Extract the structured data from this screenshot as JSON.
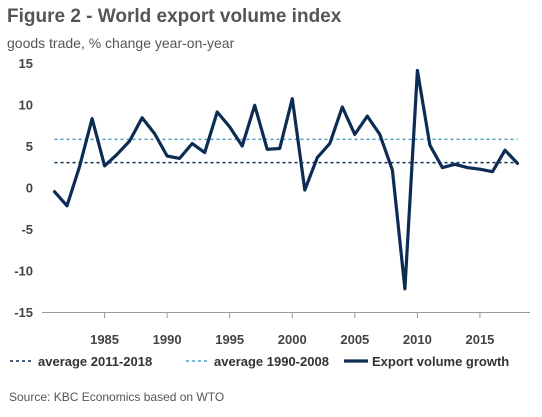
{
  "header": {
    "title": "Figure 2 - World export volume index",
    "subtitle": "goods trade, % change year-on-year"
  },
  "footer": {
    "source": "Source: KBC Economics based on WTO"
  },
  "colors": {
    "main_line": "#0d2c54",
    "avg_2011_2018": "#0d2c54",
    "avg_1990_2008": "#4fa0bd",
    "axis": "#999999"
  },
  "chart_data": {
    "type": "line",
    "title": "Figure 2 - World export volume index",
    "subtitle": "goods trade, % change year-on-year",
    "xlabel": "",
    "ylabel": "",
    "xlim": [
      1980,
      2019
    ],
    "ylim": [
      -15,
      15
    ],
    "x_ticks": [
      1985,
      1990,
      1995,
      2000,
      2005,
      2010,
      2015
    ],
    "y_ticks": [
      15,
      10,
      5,
      0,
      -5,
      -10,
      -15
    ],
    "grid": false,
    "legend": "bottom",
    "x": [
      1981,
      1982,
      1983,
      1984,
      1985,
      1986,
      1987,
      1988,
      1989,
      1990,
      1991,
      1992,
      1993,
      1994,
      1995,
      1996,
      1997,
      1998,
      1999,
      2000,
      2001,
      2002,
      2003,
      2004,
      2005,
      2006,
      2007,
      2008,
      2009,
      2010,
      2011,
      2012,
      2013,
      2014,
      2015,
      2016,
      2017,
      2018
    ],
    "series": [
      {
        "name": "Export volume growth",
        "style": "solid",
        "values": [
          -0.5,
          -2.2,
          2.5,
          8.3,
          2.6,
          4.0,
          5.6,
          8.4,
          6.5,
          3.8,
          3.5,
          5.3,
          4.2,
          9.1,
          7.3,
          5.0,
          9.9,
          4.6,
          4.7,
          10.7,
          -0.3,
          3.6,
          5.3,
          9.7,
          6.4,
          8.6,
          6.4,
          2.1,
          -12.2,
          14.1,
          5.1,
          2.4,
          2.8,
          2.4,
          2.2,
          1.9,
          4.5,
          2.9
        ]
      },
      {
        "name": "average 2011-2018",
        "style": "dashed",
        "value": 3.0
      },
      {
        "name": "average 1990-2008",
        "style": "dashed",
        "value": 5.8
      }
    ]
  }
}
